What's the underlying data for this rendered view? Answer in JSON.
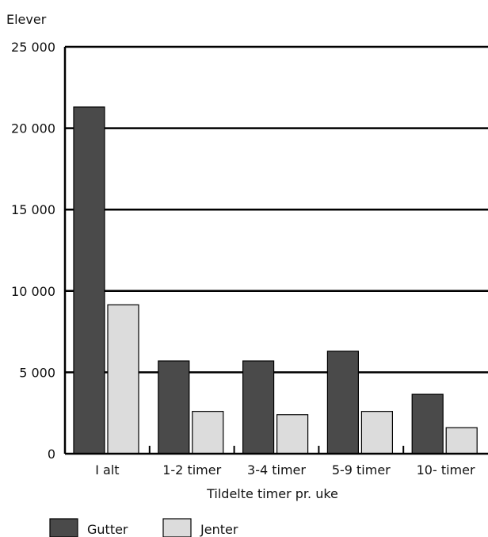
{
  "chart_data": {
    "type": "bar",
    "ylabel": "Elever",
    "xlabel": "Tildelte timer pr. uke",
    "categories": [
      "I alt",
      "1-2 timer",
      "3-4 timer",
      "5-9 timer",
      "10- timer"
    ],
    "series": [
      {
        "name": "Gutter",
        "color": "#4a4a4a",
        "values": [
          21300,
          5700,
          5700,
          6300,
          3650
        ]
      },
      {
        "name": "Jenter",
        "color": "#dcdcdc",
        "values": [
          9150,
          2600,
          2400,
          2600,
          1600
        ]
      }
    ],
    "ylim": [
      0,
      25000
    ],
    "yticks": [
      0,
      5000,
      10000,
      15000,
      20000,
      25000
    ],
    "ytick_labels": [
      "0",
      "5 000",
      "10 000",
      "15 000",
      "20 000",
      "25 000"
    ],
    "grid": true,
    "legend_position": "bottom-left"
  }
}
